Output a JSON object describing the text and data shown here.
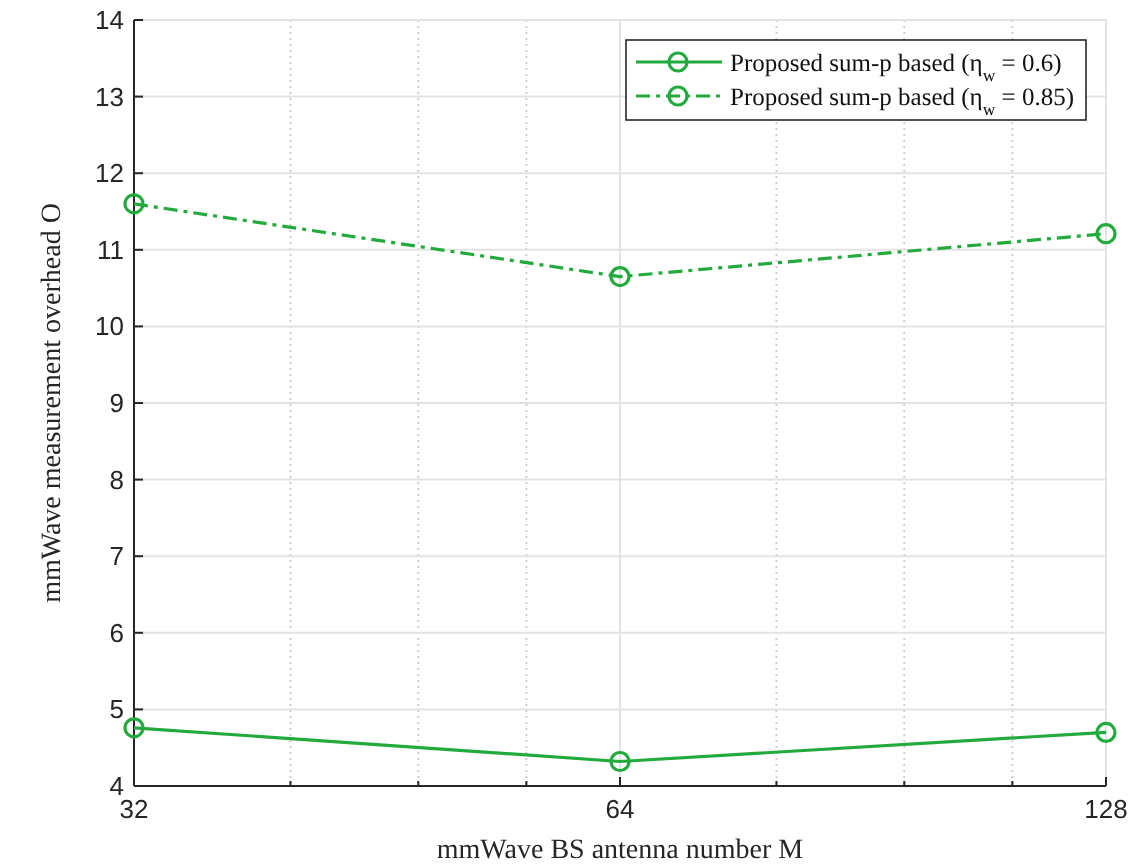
{
  "chart_data": {
    "type": "line",
    "xlabel": "mmWave BS antenna number M",
    "ylabel": "mmWave measurement overhead O",
    "x": [
      32,
      64,
      128
    ],
    "log": "x",
    "xlim": [
      32,
      128
    ],
    "xticks": [
      32,
      {
        "value": 40,
        "label": null
      },
      {
        "value": 48,
        "label": null
      },
      {
        "value": 56,
        "label": null
      },
      64,
      {
        "value": 80,
        "label": null
      },
      {
        "value": 96,
        "label": null
      },
      {
        "value": 112,
        "label": null
      },
      128
    ],
    "ylim": [
      4,
      14
    ],
    "yticks": [
      4,
      5,
      6,
      7,
      8,
      9,
      10,
      11,
      12,
      13,
      14
    ],
    "grid": true,
    "legend": "top right",
    "marker": "circle",
    "series": [
      {
        "name": "Proposed sum-p based (η$_{w}$ = 0.6)",
        "color": "#22aa3c",
        "values": [
          4.76,
          4.32,
          4.7
        ],
        "line_style": "solid"
      },
      {
        "name": "Proposed sum-p based (η$_{w}$ = 0.85)",
        "color": "#22aa3c",
        "values": [
          11.6,
          10.65,
          11.21
        ],
        "line_style": "dashed"
      }
    ]
  }
}
